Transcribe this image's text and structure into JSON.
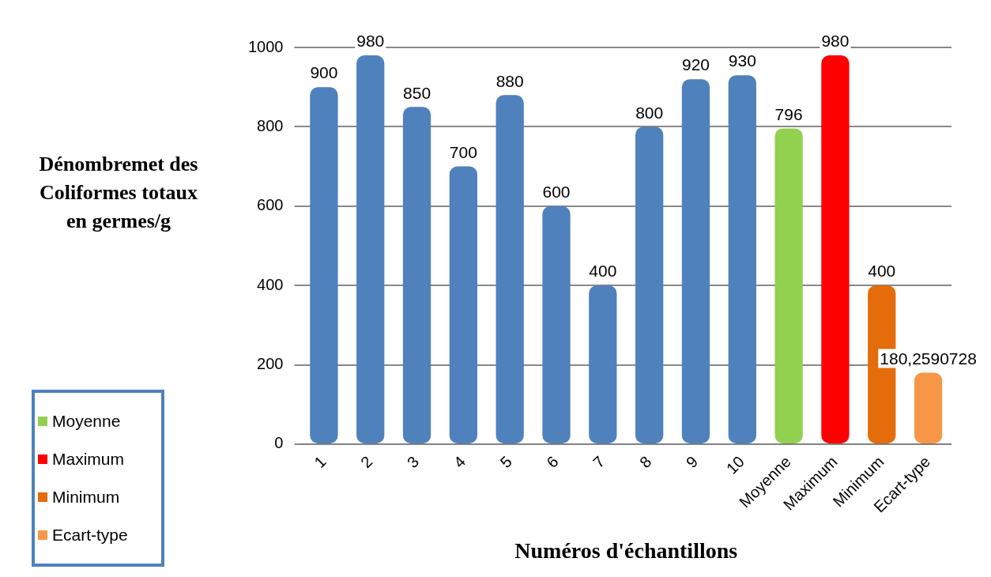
{
  "chart_data": {
    "type": "bar",
    "xlabel": "Numéros d'échantillons",
    "ylabel": "Dénombremet des Coliformes totaux en germes/g",
    "categories": [
      "1",
      "2",
      "3",
      "4",
      "5",
      "6",
      "7",
      "8",
      "9",
      "10",
      "Moyenne",
      "Maximum",
      "Minimum",
      "Ecart-type"
    ],
    "stacked": true,
    "ylim": [
      0,
      1000
    ],
    "yticks": [
      0,
      200,
      400,
      600,
      800,
      1000
    ],
    "grid": "y",
    "legend": "bottom left",
    "series": [
      {
        "color": "#4f81bd",
        "values": [
          900,
          980,
          850,
          700,
          880,
          600,
          400,
          800,
          920,
          930,
          null,
          null,
          null,
          null
        ],
        "value_labels": [
          "900",
          "980",
          "850",
          "700",
          "880",
          "600",
          "400",
          "800",
          "920",
          "930",
          null,
          null,
          null,
          null
        ]
      },
      {
        "name": "Moyenne",
        "color": "#92d050",
        "values": [
          null,
          null,
          null,
          null,
          null,
          null,
          null,
          null,
          null,
          null,
          796,
          null,
          null,
          null
        ],
        "value_labels": [
          null,
          null,
          null,
          null,
          null,
          null,
          null,
          null,
          null,
          null,
          "796",
          null,
          null,
          null
        ]
      },
      {
        "name": "Maximum",
        "color": "#ff0000",
        "values": [
          null,
          null,
          null,
          null,
          null,
          null,
          null,
          null,
          null,
          null,
          null,
          980,
          null,
          null
        ],
        "value_labels": [
          null,
          null,
          null,
          null,
          null,
          null,
          null,
          null,
          null,
          null,
          null,
          "980",
          null,
          null
        ]
      },
      {
        "name": "Minimum",
        "color": "#e46c0a",
        "values": [
          null,
          null,
          null,
          null,
          null,
          null,
          null,
          null,
          null,
          null,
          null,
          null,
          400,
          null
        ],
        "value_labels": [
          null,
          null,
          null,
          null,
          null,
          null,
          null,
          null,
          null,
          null,
          null,
          null,
          "400",
          null
        ]
      },
      {
        "name": "Ecart-type",
        "color": "#f79646",
        "values": [
          null,
          null,
          null,
          null,
          null,
          null,
          null,
          null,
          null,
          null,
          null,
          null,
          null,
          180.2590728
        ],
        "value_labels": [
          null,
          null,
          null,
          null,
          null,
          null,
          null,
          null,
          null,
          null,
          null,
          null,
          null,
          "180,2590728"
        ]
      }
    ]
  }
}
